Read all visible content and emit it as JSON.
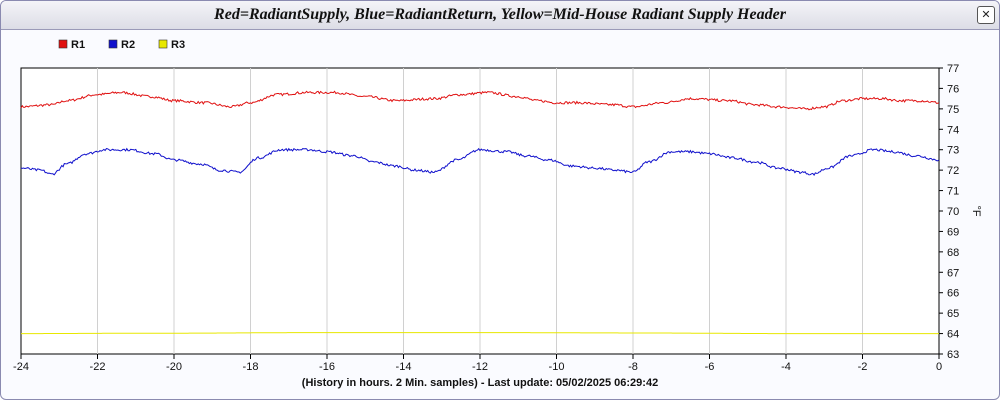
{
  "window": {
    "title": "Red=RadiantSupply, Blue=RadiantReturn, Yellow=Mid-House Radiant Supply  Header",
    "close_glyph": "✕"
  },
  "chart_data": {
    "type": "line",
    "xlabel": "(History in hours. 2 Min. samples) - Last update: 05/02/2025 06:29:42",
    "ylabel": "°F",
    "xlim": [
      -24,
      0
    ],
    "ylim": [
      63,
      77
    ],
    "x_ticks": [
      -24,
      -22,
      -20,
      -18,
      -16,
      -14,
      -12,
      -10,
      -8,
      -6,
      -4,
      -2,
      0
    ],
    "y_ticks": [
      63,
      64,
      65,
      66,
      67,
      68,
      69,
      70,
      71,
      72,
      73,
      74,
      75,
      76,
      77
    ],
    "grid": "vertical",
    "legend_position": "top-left",
    "series": [
      {
        "name": "R1",
        "color": "#e01010",
        "x": [
          -24,
          -23.2,
          -22.8,
          -22,
          -21.4,
          -20.6,
          -20,
          -19.2,
          -18.5,
          -18,
          -17.3,
          -16.5,
          -15.8,
          -15,
          -14.2,
          -13.2,
          -12.5,
          -11.8,
          -11,
          -10.5,
          -10,
          -9.5,
          -8.5,
          -8,
          -7.2,
          -6.5,
          -5.5,
          -4.8,
          -4.2,
          -3.5,
          -3,
          -2.5,
          -2,
          -1.5,
          -1,
          -0.5,
          0
        ],
        "y": [
          75.1,
          75.2,
          75.4,
          75.7,
          75.8,
          75.6,
          75.4,
          75.3,
          75.1,
          75.3,
          75.7,
          75.8,
          75.8,
          75.6,
          75.4,
          75.5,
          75.7,
          75.8,
          75.6,
          75.4,
          75.3,
          75.3,
          75.2,
          75.1,
          75.3,
          75.5,
          75.4,
          75.2,
          75.1,
          75.0,
          75.1,
          75.4,
          75.5,
          75.5,
          75.4,
          75.4,
          75.3
        ]
      },
      {
        "name": "R2",
        "color": "#1010cc",
        "x": [
          -24,
          -23.5,
          -23.2,
          -22.8,
          -22.3,
          -21.8,
          -21.2,
          -20.5,
          -20,
          -19.3,
          -18.8,
          -18.3,
          -17.8,
          -17.2,
          -16.5,
          -16,
          -15.3,
          -14.8,
          -14.2,
          -13.7,
          -13.2,
          -12.6,
          -12,
          -11.3,
          -10.8,
          -10.2,
          -9.6,
          -9,
          -8.5,
          -8,
          -7.6,
          -7,
          -6.5,
          -6,
          -5.4,
          -4.8,
          -4.2,
          -3.6,
          -3.3,
          -2.9,
          -2.3,
          -1.7,
          -1.2,
          -0.6,
          0
        ],
        "y": [
          72.1,
          72.0,
          71.8,
          72.3,
          72.8,
          73.0,
          73.0,
          72.8,
          72.5,
          72.3,
          72.0,
          71.9,
          72.6,
          73.0,
          73.0,
          72.9,
          72.7,
          72.4,
          72.2,
          72.0,
          71.9,
          72.5,
          73.0,
          72.9,
          72.7,
          72.5,
          72.2,
          72.1,
          72.0,
          71.9,
          72.4,
          72.9,
          72.9,
          72.8,
          72.6,
          72.4,
          72.1,
          71.9,
          71.8,
          72.1,
          72.7,
          73.0,
          72.9,
          72.7,
          72.5
        ]
      },
      {
        "name": "R3",
        "color": "#e8e800",
        "x": [
          -24,
          -20,
          -16,
          -12,
          -8,
          -4,
          0
        ],
        "y": [
          64.0,
          64.02,
          64.05,
          64.05,
          64.03,
          64.0,
          64.0
        ]
      }
    ]
  }
}
